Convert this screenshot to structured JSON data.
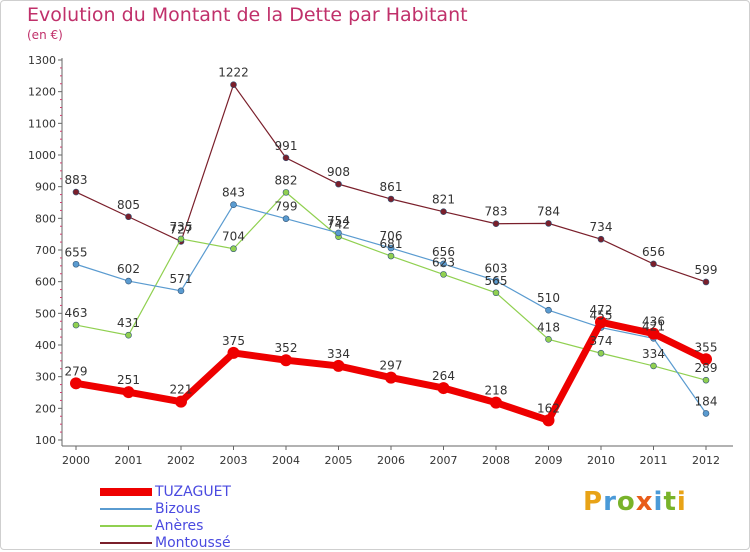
{
  "title": "Evolution du Montant de la Dette par Habitant",
  "subtitle": "(en €)",
  "logo": {
    "letters": [
      {
        "ch": "P",
        "color": "#e8a317"
      },
      {
        "ch": "r",
        "color": "#4a9ad8"
      },
      {
        "ch": "o",
        "color": "#79b32a"
      },
      {
        "ch": "x",
        "color": "#e85c1a"
      },
      {
        "ch": "i",
        "color": "#4a9ad8"
      },
      {
        "ch": "t",
        "color": "#79b32a"
      },
      {
        "ch": "i",
        "color": "#e8a317"
      }
    ]
  },
  "chart_data": {
    "type": "line",
    "title": "Evolution du Montant de la Dette par Habitant",
    "subtitle": "(en €)",
    "xlabel": "",
    "ylabel": "",
    "x": [
      "2000",
      "2001",
      "2002",
      "2003",
      "2004",
      "2005",
      "2006",
      "2007",
      "2008",
      "2009",
      "2010",
      "2011",
      "2012"
    ],
    "ylim": [
      100,
      1300
    ],
    "yticks": [
      100,
      200,
      300,
      400,
      500,
      600,
      700,
      800,
      900,
      1000,
      1100,
      1200,
      1300
    ],
    "grid": false,
    "legend_position": "bottom-left",
    "series": [
      {
        "name": "TUZAGUET",
        "color": "#ee0000",
        "width": 7,
        "values": [
          279,
          251,
          221,
          375,
          352,
          334,
          297,
          264,
          218,
          162,
          472,
          436,
          355
        ],
        "labels": [
          "279",
          "251",
          "221",
          "375",
          "352",
          "334",
          "297",
          "264",
          "218",
          "162",
          "472",
          "436",
          "355"
        ]
      },
      {
        "name": "Bizous",
        "color": "#5a9bd0",
        "width": 1.2,
        "values": [
          655,
          602,
          571,
          843,
          799,
          754,
          706,
          656,
          603,
          510,
          455,
          421,
          184
        ],
        "labels": [
          "655",
          "602",
          "571",
          "843",
          "799",
          "754",
          "706",
          "656",
          "603",
          "510",
          "455",
          "421",
          "184"
        ]
      },
      {
        "name": "Anères",
        "color": "#90d050",
        "width": 1.2,
        "values": [
          463,
          431,
          735,
          704,
          882,
          742,
          681,
          623,
          565,
          418,
          374,
          334,
          289
        ],
        "labels": [
          "463",
          "431",
          "735",
          "704",
          "882",
          "742",
          "681",
          "623",
          "565",
          "418",
          "374",
          "334",
          "289"
        ]
      },
      {
        "name": "Montoussé",
        "color": "#7a1f2b",
        "width": 1.2,
        "values": [
          883,
          805,
          727,
          1222,
          991,
          908,
          861,
          821,
          783,
          784,
          734,
          656,
          599
        ],
        "labels": [
          "883",
          "805",
          "727",
          "1222",
          "991",
          "908",
          "861",
          "821",
          "783",
          "784",
          "734",
          "656",
          "599"
        ]
      }
    ]
  }
}
